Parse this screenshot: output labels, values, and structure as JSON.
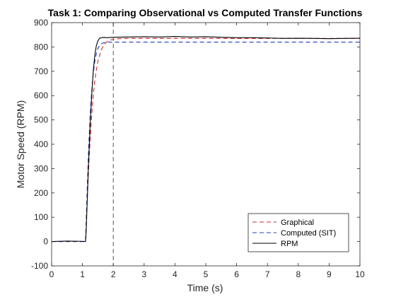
{
  "chart_data": {
    "type": "line",
    "title": "Task 1: Comparing Observational vs Computed Transfer Functions",
    "xlabel": "Time (s)",
    "ylabel": "Motor Speed (RPM)",
    "xlim": [
      0,
      10
    ],
    "ylim": [
      -100,
      900
    ],
    "xticks": [
      0,
      1,
      2,
      3,
      4,
      5,
      6,
      7,
      8,
      9,
      10
    ],
    "yticks": [
      -100,
      0,
      100,
      200,
      300,
      400,
      500,
      600,
      700,
      800,
      900
    ],
    "grid": false,
    "legend_position": "bottom-right",
    "vertical_marker": {
      "x": 2,
      "style": "dashed",
      "color": "#555555"
    },
    "series": [
      {
        "name": "Graphical",
        "color": "#d62728",
        "style": "dashed",
        "x": [
          0,
          1.1,
          1.15,
          1.2,
          1.25,
          1.3,
          1.35,
          1.4,
          1.45,
          1.5,
          1.6,
          1.7,
          1.8,
          1.9,
          2.0,
          2.2,
          2.5,
          3,
          4,
          5,
          6,
          7,
          8,
          9,
          10
        ],
        "y": [
          0,
          0,
          160,
          300,
          420,
          520,
          600,
          660,
          705,
          740,
          785,
          810,
          822,
          828,
          832,
          834,
          835,
          835,
          835,
          835,
          835,
          835,
          835,
          835,
          835
        ]
      },
      {
        "name": "Computed (SIT)",
        "color": "#1f3fbf",
        "style": "dashed",
        "x": [
          0,
          1.1,
          1.15,
          1.2,
          1.25,
          1.3,
          1.35,
          1.4,
          1.45,
          1.5,
          1.55,
          1.6,
          1.7,
          1.8,
          2.0,
          2.5,
          3,
          4,
          5,
          6,
          7,
          8,
          9,
          10
        ],
        "y": [
          0,
          0,
          200,
          380,
          520,
          620,
          690,
          740,
          772,
          793,
          805,
          812,
          818,
          820,
          820,
          820,
          820,
          820,
          820,
          820,
          820,
          820,
          820,
          820
        ]
      },
      {
        "name": "RPM",
        "color": "#000000",
        "style": "solid",
        "x": [
          0,
          0.5,
          1.0,
          1.1,
          1.12,
          1.15,
          1.2,
          1.25,
          1.3,
          1.35,
          1.4,
          1.45,
          1.5,
          1.55,
          1.6,
          1.7,
          1.8,
          2.0,
          2.5,
          3,
          3.5,
          4,
          4.5,
          5,
          5.5,
          6,
          6.5,
          7,
          7.5,
          8,
          8.5,
          9,
          9.5,
          10
        ],
        "y": [
          0,
          2,
          1,
          0,
          40,
          150,
          330,
          480,
          600,
          700,
          765,
          805,
          825,
          835,
          838,
          839,
          838,
          840,
          841,
          842,
          841,
          843,
          841,
          842,
          840,
          838,
          838,
          837,
          835,
          836,
          835,
          834,
          835,
          836
        ]
      }
    ]
  }
}
